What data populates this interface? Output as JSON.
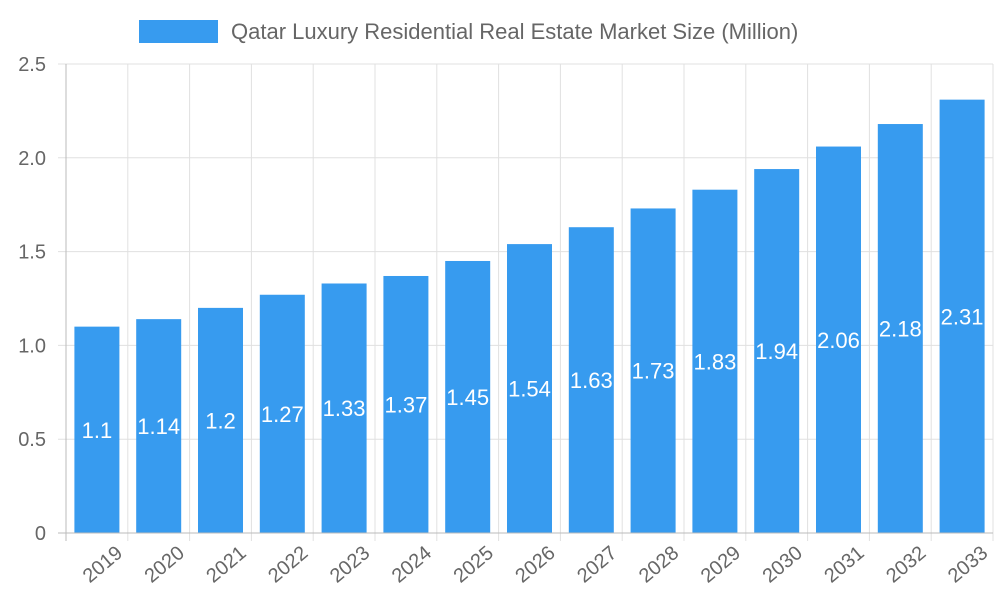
{
  "chart_data": {
    "type": "bar",
    "title": "",
    "xlabel": "",
    "ylabel": "",
    "categories": [
      "2019",
      "2020",
      "2021",
      "2022",
      "2023",
      "2024",
      "2025",
      "2026",
      "2027",
      "2028",
      "2029",
      "2030",
      "2031",
      "2032",
      "2033"
    ],
    "series": [
      {
        "name": "Qatar Luxury Residential Real Estate Market Size (Million)",
        "values": [
          1.1,
          1.14,
          1.2,
          1.27,
          1.33,
          1.37,
          1.45,
          1.54,
          1.63,
          1.73,
          1.83,
          1.94,
          2.06,
          2.18,
          2.31
        ]
      }
    ],
    "data_labels": [
      "1.1",
      "1.14",
      "1.2",
      "1.27",
      "1.33",
      "1.37",
      "1.45",
      "1.54",
      "1.63",
      "1.73",
      "1.83",
      "1.94",
      "2.06",
      "2.18",
      "2.31"
    ],
    "ylim": [
      0,
      2.5
    ],
    "yticks": [
      "0",
      "0.5",
      "1.0",
      "1.5",
      "2.0",
      "2.5"
    ],
    "grid": true,
    "legend_position": "top",
    "colors": {
      "bar": "#379bef",
      "grid": "#e0e0e0",
      "text": "#666666"
    }
  }
}
